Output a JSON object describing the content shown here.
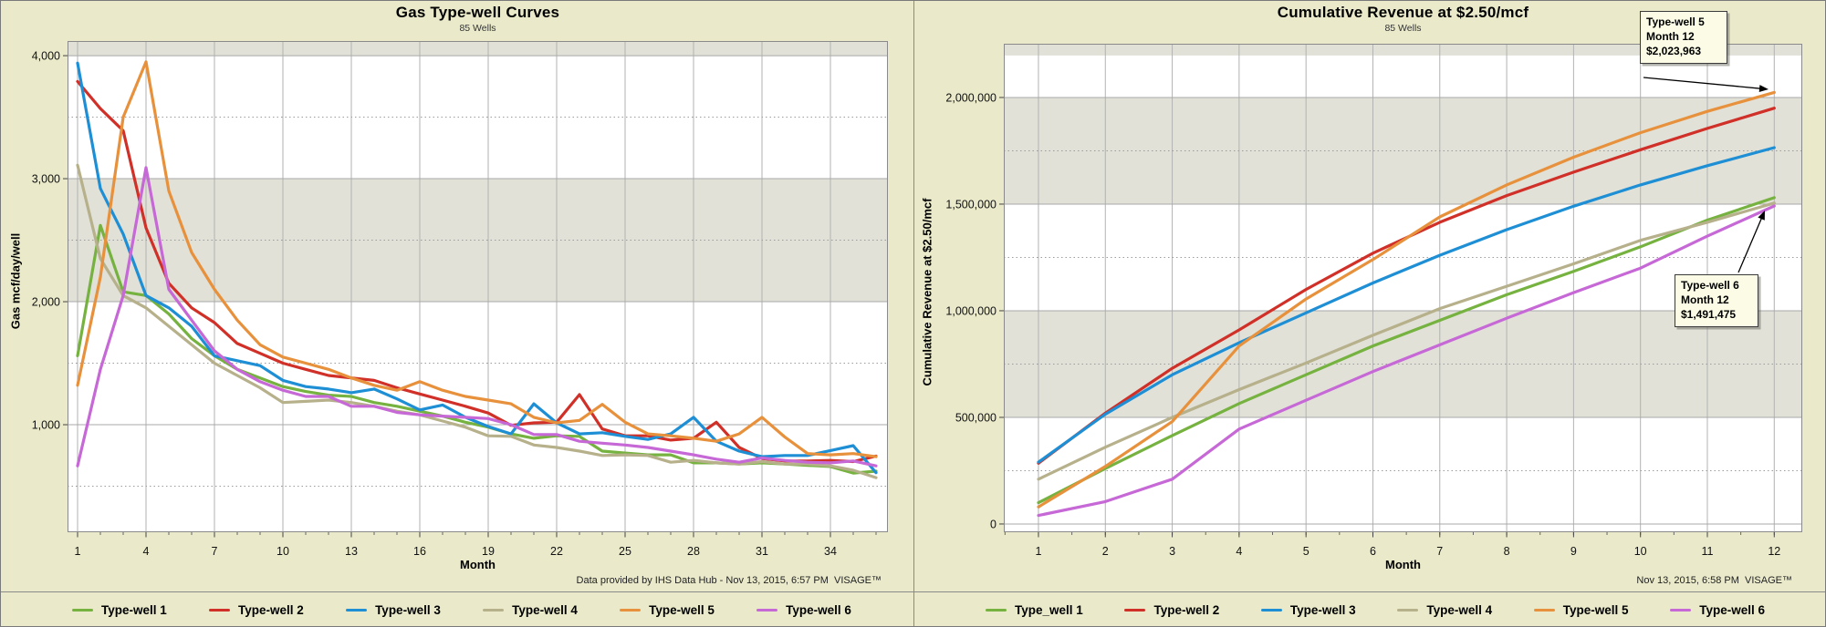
{
  "colors": {
    "page_bg": "#eaeacb",
    "plot_bg": "#ffffff",
    "band_gray": "#e1e1d8",
    "grid_major": "#a8a8a8",
    "grid_vertical": "#b2b2b2",
    "grid_minor_dotted": "#9c9c9c",
    "plot_border": "#8a8a8a",
    "series_green": "#76b23f",
    "series_red": "#d03028",
    "series_blue": "#1e8fd5",
    "series_tan": "#b6b08b",
    "series_orange": "#e8913c",
    "series_purple": "#c668d6"
  },
  "panels": [
    {
      "title": "Gas Type-well Curves",
      "subtitle": "85 Wells",
      "y_axis_title": "Gas mcf/day/well",
      "x_axis_title": "Month",
      "footer": "Data provided by IHS Data Hub - Nov 13, 2015, 6:57 PM  VISAGE™",
      "legend": [
        {
          "label": "Type-well 1",
          "color": "#76b23f"
        },
        {
          "label": "Type-well 2",
          "color": "#d03028"
        },
        {
          "label": "Type-well 3",
          "color": "#1e8fd5"
        },
        {
          "label": "Type-well 4",
          "color": "#b6b08b"
        },
        {
          "label": "Type-well 5",
          "color": "#e8913c"
        },
        {
          "label": "Type-well 6",
          "color": "#c668d6"
        }
      ],
      "chart_data": {
        "type": "line",
        "title": "Gas Type-well Curves",
        "subtitle": "85 Wells",
        "xlabel": "Month",
        "ylabel": "Gas mcf/day/well",
        "xlim": [
          0.56,
          36.52
        ],
        "ylim": [
          126,
          4119
        ],
        "grid": "on",
        "legend_position": "bottom",
        "x": [
          1,
          2,
          3,
          4,
          5,
          6,
          7,
          8,
          9,
          10,
          11,
          12,
          13,
          14,
          15,
          16,
          17,
          18,
          19,
          20,
          21,
          22,
          23,
          24,
          25,
          26,
          27,
          28,
          29,
          30,
          31,
          32,
          33,
          34,
          35,
          36
        ],
        "xticks": [
          {
            "v": 1,
            "label": "1"
          },
          {
            "v": 4,
            "label": "4"
          },
          {
            "v": 7,
            "label": "7"
          },
          {
            "v": 10,
            "label": "10"
          },
          {
            "v": 13,
            "label": "13"
          },
          {
            "v": 16,
            "label": "16"
          },
          {
            "v": 19,
            "label": "19"
          },
          {
            "v": 22,
            "label": "22"
          },
          {
            "v": 25,
            "label": "25"
          },
          {
            "v": 28,
            "label": "28"
          },
          {
            "v": 31,
            "label": "31"
          },
          {
            "v": 34,
            "label": "34"
          }
        ],
        "xticks_minor_step": 1,
        "yticks": [
          {
            "v": 1000,
            "label": "1,000"
          },
          {
            "v": 2000,
            "label": "2,000"
          },
          {
            "v": 3000,
            "label": "3,000"
          },
          {
            "v": 4000,
            "label": "4,000"
          }
        ],
        "yticks_minor": [
          500,
          1500,
          2500,
          3500
        ],
        "bands": [
          [
            4000,
            4119
          ],
          [
            2000,
            3000
          ]
        ],
        "series": [
          {
            "name": "Type-well 1",
            "color": "#76b23f",
            "values": [
              1560,
              2620,
              2080,
              2050,
              1900,
              1700,
              1560,
              1450,
              1380,
              1310,
              1270,
              1240,
              1230,
              1180,
              1150,
              1110,
              1070,
              1020,
              980,
              925,
              890,
              910,
              905,
              785,
              770,
              755,
              755,
              690,
              690,
              680,
              690,
              680,
              670,
              660,
              607,
              622
            ]
          },
          {
            "name": "Type-well 2",
            "color": "#d03028",
            "values": [
              3790,
              3570,
              3390,
              2600,
              2150,
              1950,
              1830,
              1660,
              1580,
              1500,
              1450,
              1400,
              1380,
              1360,
              1300,
              1250,
              1200,
              1150,
              1095,
              995,
              1015,
              1020,
              1245,
              965,
              910,
              910,
              875,
              890,
              1020,
              815,
              725,
              705,
              705,
              710,
              700,
              745
            ]
          },
          {
            "name": "Type-well 3",
            "color": "#1e8fd5",
            "values": [
              3940,
              2920,
              2550,
              2050,
              1950,
              1800,
              1560,
              1520,
              1480,
              1360,
              1310,
              1290,
              1260,
              1290,
              1210,
              1120,
              1160,
              1060,
              985,
              925,
              1170,
              1015,
              925,
              935,
              905,
              880,
              925,
              1060,
              865,
              785,
              740,
              750,
              750,
              790,
              830,
              610
            ]
          },
          {
            "name": "Type-well 4",
            "color": "#b6b08b",
            "values": [
              3110,
              2350,
              2050,
              1950,
              1800,
              1650,
              1500,
              1400,
              1300,
              1180,
              1190,
              1200,
              1180,
              1150,
              1110,
              1080,
              1030,
              980,
              910,
              905,
              835,
              815,
              785,
              750,
              755,
              750,
              695,
              710,
              690,
              680,
              700,
              680,
              680,
              665,
              630,
              570
            ]
          },
          {
            "name": "Type-well 5",
            "color": "#e8913c",
            "values": [
              1320,
              2200,
              3500,
              3950,
              2900,
              2400,
              2100,
              1850,
              1650,
              1550,
              1500,
              1450,
              1380,
              1320,
              1280,
              1350,
              1280,
              1230,
              1200,
              1170,
              1060,
              1015,
              1035,
              1165,
              1020,
              925,
              910,
              890,
              865,
              925,
              1060,
              900,
              765,
              755,
              765,
              740
            ]
          },
          {
            "name": "Type-well 6",
            "color": "#c668d6",
            "values": [
              665,
              1450,
              2050,
              3090,
              2100,
              1850,
              1600,
              1450,
              1350,
              1280,
              1230,
              1230,
              1150,
              1150,
              1100,
              1080,
              1070,
              1060,
              1050,
              1000,
              920,
              920,
              865,
              850,
              835,
              815,
              785,
              755,
              720,
              695,
              730,
              710,
              695,
              690,
              705,
              665
            ]
          }
        ]
      }
    },
    {
      "title": "Cumulative Revenue at $2.50/mcf",
      "subtitle": "85 Wells",
      "y_axis_title": "Cumulative Revenue at $2.50/mcf",
      "x_axis_title": "Month",
      "footer": "Nov 13, 2015, 6:58 PM  VISAGE™",
      "legend": [
        {
          "label": "Type_well 1",
          "color": "#76b23f"
        },
        {
          "label": "Type-well 2",
          "color": "#d03028"
        },
        {
          "label": "Type-well 3",
          "color": "#1e8fd5"
        },
        {
          "label": "Type-well 4",
          "color": "#b6b08b"
        },
        {
          "label": "Type-well 5",
          "color": "#e8913c"
        },
        {
          "label": "Type-well 6",
          "color": "#c668d6"
        }
      ],
      "annotations": [
        {
          "lines": [
            "Type-well 5",
            "Month 12",
            "$2,023,963"
          ]
        },
        {
          "lines": [
            "Type-well 6",
            "Month 12",
            "$1,491,475"
          ]
        }
      ],
      "chart_data": {
        "type": "line",
        "title": "Cumulative Revenue at $2.50/mcf",
        "subtitle": "85 Wells",
        "xlabel": "Month",
        "ylabel": "Cumulative Revenue at $2.50/mcf",
        "xlim": [
          0.482,
          12.419
        ],
        "ylim": [
          -38600,
          2252000
        ],
        "grid": "on",
        "legend_position": "bottom",
        "x": [
          1,
          2,
          3,
          4,
          5,
          6,
          7,
          8,
          9,
          10,
          11,
          12
        ],
        "xticks": [
          {
            "v": 1,
            "label": "1"
          },
          {
            "v": 2,
            "label": "2"
          },
          {
            "v": 3,
            "label": "3"
          },
          {
            "v": 4,
            "label": "4"
          },
          {
            "v": 5,
            "label": "5"
          },
          {
            "v": 6,
            "label": "6"
          },
          {
            "v": 7,
            "label": "7"
          },
          {
            "v": 8,
            "label": "8"
          },
          {
            "v": 9,
            "label": "9"
          },
          {
            "v": 10,
            "label": "10"
          },
          {
            "v": 11,
            "label": "11"
          },
          {
            "v": 12,
            "label": "12"
          }
        ],
        "xticks_minor_step": 0.5,
        "yticks": [
          {
            "v": 0,
            "label": "0"
          },
          {
            "v": 500000,
            "label": "500,000"
          },
          {
            "v": 1000000,
            "label": "1,000,000"
          },
          {
            "v": 1500000,
            "label": "1,500,000"
          },
          {
            "v": 2000000,
            "label": "2,000,000"
          }
        ],
        "yticks_minor": [
          250000,
          750000,
          1250000,
          1750000
        ],
        "bands": [
          [
            2197000,
            2252000
          ],
          [
            1500000,
            2000000
          ],
          [
            500000,
            1000000
          ]
        ],
        "series": [
          {
            "name": "Type_well 1",
            "color": "#76b23f",
            "values": [
              100000,
              260000,
              415000,
              565000,
              700000,
              835000,
              955000,
              1075000,
              1185000,
              1300000,
              1425000,
              1530000
            ]
          },
          {
            "name": "Type-well 2",
            "color": "#d03028",
            "values": [
              285000,
              520000,
              730000,
              910000,
              1100000,
              1270000,
              1415000,
              1540000,
              1650000,
              1755000,
              1855000,
              1950000
            ]
          },
          {
            "name": "Type-well 3",
            "color": "#1e8fd5",
            "values": [
              290000,
              515000,
              700000,
              850000,
              990000,
              1130000,
              1260000,
              1380000,
              1490000,
              1590000,
              1680000,
              1765000
            ]
          },
          {
            "name": "Type-well 4",
            "color": "#b6b08b",
            "values": [
              210000,
              360000,
              500000,
              630000,
              755000,
              885000,
              1010000,
              1115000,
              1220000,
              1330000,
              1415000,
              1505000
            ]
          },
          {
            "name": "Type-well 5",
            "color": "#e8913c",
            "values": [
              80000,
              270000,
              480000,
              835000,
              1055000,
              1240000,
              1440000,
              1590000,
              1720000,
              1835000,
              1935000,
              2023963
            ]
          },
          {
            "name": "Type-well 6",
            "color": "#c668d6",
            "values": [
              40000,
              105000,
              210000,
              445000,
              580000,
              715000,
              840000,
              965000,
              1085000,
              1200000,
              1350000,
              1491475
            ]
          }
        ]
      }
    }
  ]
}
